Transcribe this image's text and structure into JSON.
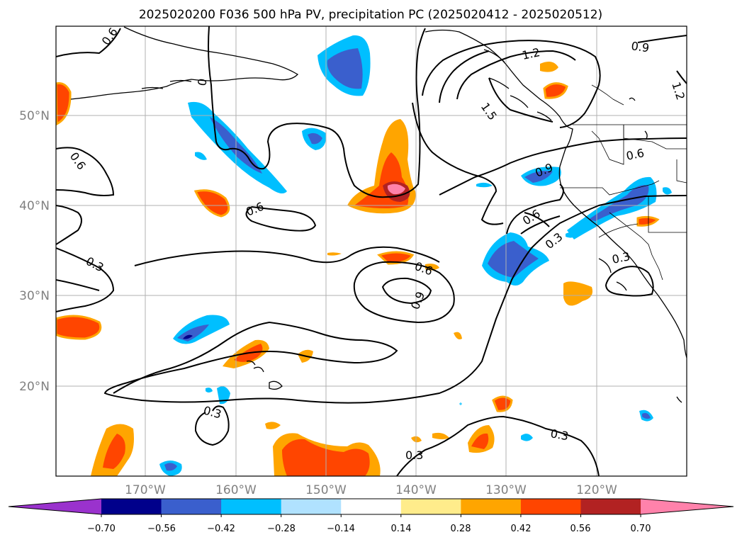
{
  "title": "2025020200 F036 500 hPa PV, precipitation PC (2025020412 - 2025020512)",
  "lat_labels": [
    "50°N",
    "40°N",
    "30°N",
    "20°N"
  ],
  "lon_labels": [
    "170°W",
    "160°W",
    "150°W",
    "140°W",
    "130°W",
    "120°W"
  ],
  "colorbar": {
    "ticks": [
      "−0.70",
      "−0.56",
      "−0.42",
      "−0.28",
      "−0.14",
      "0.14",
      "0.28",
      "0.42",
      "0.56",
      "0.70"
    ],
    "colors": [
      "#9a32cd",
      "#00008b",
      "#3a5fcd",
      "#00bfff",
      "#b0e2ff",
      "#ffffff",
      "#ffec8b",
      "#ffa500",
      "#ff4500",
      "#b22222",
      "#ff82ab"
    ]
  },
  "contour_labels": [
    "0.6",
    "0",
    "0.6",
    "1.2",
    "1.5",
    "0.9",
    "1.2",
    "0.6",
    "0.9",
    "0.6",
    "0.6",
    "0.3",
    "0.3",
    "0.6",
    "0.9",
    "0.3",
    "0.3",
    "0.3",
    "0.3"
  ]
}
